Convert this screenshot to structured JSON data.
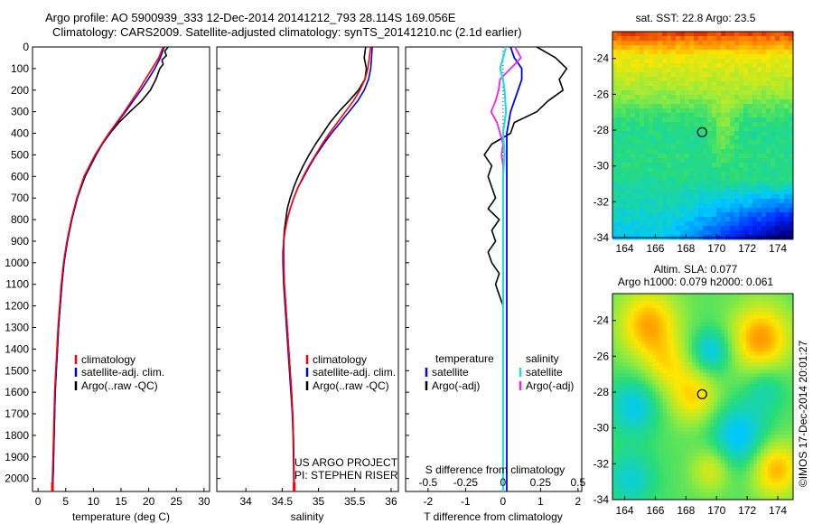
{
  "header": {
    "line1": "Argo profile: AO 5900939_333 12-Dec-2014 20141212_793 28.114S 169.056E",
    "line2": "Climatology: CARS2009. Satellite-adjusted climatology: synTS_20141210.nc (2.1d earlier)"
  },
  "colors": {
    "climatology": "#ff0000",
    "satellite": "#0000dd",
    "argo": "#000000",
    "temp_sat": "#0000ff",
    "sal_sat": "#22dddd",
    "sal_argo": "#ee22ee"
  },
  "legend": {
    "climatology": "climatology",
    "satellite": "satellite-adj. clim.",
    "argo": "Argo(..raw -QC)",
    "diff_temperature": "temperature",
    "diff_salinity": "salinity",
    "diff_satellite": "satellite",
    "diff_argo": "Argo(-adj)"
  },
  "credits": {
    "project": "US ARGO PROJECT",
    "pi": "PI: STEPHEN RISER"
  },
  "timestamp": "©IMOS 17-Dec-2014 20:01:27",
  "depth_ticks": [
    0,
    100,
    200,
    300,
    400,
    500,
    600,
    700,
    800,
    900,
    1000,
    1100,
    1200,
    1300,
    1400,
    1500,
    1600,
    1700,
    1800,
    1900,
    2000
  ],
  "chart_data": [
    {
      "type": "line",
      "xlabel": "temperature (deg C)",
      "xlim": [
        -1,
        31
      ],
      "ylim": [
        2060,
        0
      ],
      "xticks": [
        0,
        5,
        10,
        15,
        20,
        25,
        30
      ],
      "series": [
        {
          "name": "climatology",
          "depth": [
            0,
            50,
            100,
            150,
            200,
            250,
            300,
            350,
            400,
            450,
            500,
            600,
            700,
            800,
            900,
            1000,
            1100,
            1200,
            1300,
            1400,
            1500,
            1600,
            1700,
            1800,
            1900,
            2000,
            2060
          ],
          "values": [
            22.6,
            21.8,
            20.6,
            19.4,
            18.2,
            16.9,
            15.6,
            14.2,
            12.8,
            11.5,
            10.3,
            8.3,
            7.0,
            6.0,
            5.2,
            4.6,
            4.2,
            3.9,
            3.6,
            3.4,
            3.2,
            3.0,
            2.9,
            2.8,
            2.7,
            2.6,
            2.6
          ]
        },
        {
          "name": "satellite-adj. clim.",
          "depth": [
            0,
            50,
            100,
            150,
            200,
            250,
            300,
            350,
            400,
            450,
            500,
            600,
            700,
            800,
            900,
            1000,
            1100,
            1200,
            1300,
            1400,
            1500,
            1600,
            1700,
            1800,
            1900,
            2000,
            2060
          ],
          "values": [
            22.8,
            22.1,
            21.1,
            19.9,
            18.6,
            17.2,
            15.8,
            14.3,
            12.9,
            11.6,
            10.4,
            8.4,
            7.1,
            6.1,
            5.3,
            4.7,
            4.3,
            4.0,
            3.7,
            3.5,
            3.3,
            3.1,
            3.0,
            2.9,
            2.8,
            2.7,
            2.7
          ]
        },
        {
          "name": "Argo(..raw -QC)",
          "depth": [
            0,
            20,
            40,
            60,
            80,
            100,
            150,
            200,
            250,
            300,
            350,
            400,
            450,
            500,
            600,
            700,
            800,
            900,
            1000,
            1100,
            1200,
            1300,
            1400,
            1500,
            1600,
            1700,
            1800,
            1900,
            2000,
            2060
          ],
          "values": [
            23.5,
            22.9,
            23.2,
            22.4,
            22.6,
            22.0,
            21.3,
            20.3,
            18.7,
            16.6,
            14.6,
            13.0,
            11.6,
            10.5,
            8.5,
            7.1,
            6.1,
            5.3,
            4.7,
            4.3,
            4.0,
            3.7,
            3.5,
            3.3,
            3.1,
            3.0,
            2.9,
            2.8,
            2.7,
            2.7
          ]
        }
      ]
    },
    {
      "type": "line",
      "xlabel": "salinity",
      "xlim": [
        33.6,
        36.1
      ],
      "ylim": [
        2060,
        0
      ],
      "xticks": [
        34,
        34.5,
        35,
        35.5,
        36
      ],
      "series": [
        {
          "name": "climatology",
          "depth": [
            0,
            50,
            100,
            150,
            200,
            250,
            300,
            350,
            400,
            450,
            500,
            550,
            600,
            650,
            700,
            750,
            800,
            850,
            900,
            950,
            1000,
            1100,
            1200,
            1300,
            1400,
            1500,
            1600,
            1700,
            1800,
            1900,
            2000,
            2060
          ],
          "values": [
            35.72,
            35.7,
            35.68,
            35.64,
            35.57,
            35.48,
            35.37,
            35.26,
            35.15,
            35.05,
            34.96,
            34.87,
            34.79,
            34.72,
            34.66,
            34.61,
            34.57,
            34.54,
            34.52,
            34.52,
            34.52,
            34.53,
            34.55,
            34.57,
            34.59,
            34.61,
            34.63,
            34.645,
            34.655,
            34.66,
            34.665,
            34.665
          ]
        },
        {
          "name": "satellite-adj. clim.",
          "depth": [
            0,
            50,
            100,
            150,
            200,
            250,
            300,
            350,
            400,
            450,
            500,
            550,
            600,
            650,
            700,
            750,
            800,
            850,
            900,
            950,
            1000,
            1100,
            1200,
            1300,
            1400,
            1500,
            1600,
            1700,
            1800,
            1900,
            2000,
            2060
          ],
          "values": [
            35.74,
            35.73,
            35.72,
            35.69,
            35.63,
            35.54,
            35.42,
            35.3,
            35.18,
            35.07,
            34.97,
            34.88,
            34.8,
            34.72,
            34.66,
            34.61,
            34.57,
            34.54,
            34.52,
            34.51,
            34.51,
            34.52,
            34.54,
            34.56,
            34.58,
            34.6,
            34.62,
            34.64,
            34.65,
            34.655,
            34.66,
            34.66
          ]
        },
        {
          "name": "Argo(..raw -QC)",
          "depth": [
            0,
            50,
            100,
            150,
            200,
            250,
            300,
            350,
            400,
            450,
            500,
            550,
            600,
            650,
            700,
            750,
            800,
            850,
            900,
            950,
            1000,
            1100,
            1200,
            1300,
            1400,
            1500,
            1600,
            1700,
            1800,
            1900,
            2000,
            2060
          ],
          "values": [
            35.65,
            35.63,
            35.66,
            35.64,
            35.55,
            35.42,
            35.28,
            35.16,
            35.06,
            34.96,
            34.87,
            34.79,
            34.72,
            34.66,
            34.61,
            34.57,
            34.55,
            34.53,
            34.52,
            34.52,
            34.52,
            34.53,
            34.55,
            34.57,
            34.59,
            34.61,
            34.63,
            34.645,
            34.655,
            34.66,
            34.665,
            34.665
          ]
        }
      ]
    },
    {
      "type": "line",
      "xlabel": "T difference from climatology",
      "xlabel_top": "S difference from climatology",
      "xlim": [
        -2.6,
        2.1
      ],
      "ylim": [
        2060,
        0
      ],
      "xticks": [
        -2,
        -1,
        0,
        1,
        2
      ],
      "xticks_top": [
        "-0.5",
        "-0.25",
        "0",
        "0.25",
        "0.5"
      ],
      "series": [
        {
          "name": "temperature satellite",
          "depth": [
            0,
            50,
            100,
            150,
            200,
            300,
            400,
            500,
            600,
            700,
            800,
            1000,
            1200,
            1500,
            2060
          ],
          "values": [
            0.2,
            0.3,
            0.5,
            0.5,
            0.4,
            0.2,
            0.1,
            0.1,
            0.1,
            0.1,
            0.1,
            0.1,
            0.1,
            0.1,
            0.1
          ]
        },
        {
          "name": "temperature Argo(-adj)",
          "depth": [
            0,
            50,
            100,
            150,
            200,
            250,
            300,
            350,
            400,
            450,
            500,
            550,
            600,
            650,
            700,
            750,
            800,
            850,
            900,
            950,
            1000,
            1050,
            1100,
            1150,
            1200,
            1250,
            1300,
            1500,
            2060
          ],
          "values": [
            0.9,
            1.4,
            1.7,
            1.5,
            1.6,
            1.2,
            0.9,
            0.3,
            0.2,
            -0.3,
            -0.5,
            -0.3,
            -0.4,
            -0.3,
            -0.2,
            -0.4,
            -0.1,
            -0.3,
            -0.2,
            -0.4,
            -0.3,
            -0.1,
            -0.2,
            -0.1,
            0,
            0,
            0,
            0,
            0
          ]
        },
        {
          "name": "salinity satellite",
          "depth": [
            0,
            50,
            100,
            150,
            200,
            300,
            400,
            500,
            600,
            800,
            1000,
            1500,
            2060
          ],
          "values": [
            0.02,
            0.0,
            -0.02,
            0.0,
            0.01,
            0.02,
            0.0,
            0.01,
            0.0,
            0.0,
            0.0,
            0.0,
            0.0
          ]
        },
        {
          "name": "salinity Argo(-adj)",
          "depth": [
            0,
            50,
            100,
            150,
            200,
            250,
            300,
            350,
            400,
            450,
            500,
            550,
            600,
            650,
            700,
            800,
            1000,
            1500,
            2060
          ],
          "values": [
            0.08,
            0.12,
            0.05,
            -0.02,
            -0.03,
            -0.05,
            -0.08,
            -0.04,
            -0.02,
            0.0,
            -0.01,
            0.0,
            0.0,
            0.0,
            0.0,
            0.0,
            0.0,
            0.0,
            0.0
          ]
        }
      ]
    },
    {
      "type": "heatmap",
      "title": "sat. SST: 22.8 Argo: 23.5",
      "xlim": [
        163.2,
        175.0
      ],
      "ylim": [
        -34,
        -22.5
      ],
      "xticks": [
        164,
        166,
        168,
        170,
        172,
        174
      ],
      "yticks": [
        -24,
        -26,
        -28,
        -30,
        -32,
        -34
      ],
      "marker": [
        169.056,
        -28.114
      ]
    },
    {
      "type": "heatmap",
      "title": "Altim. SLA: 0.077",
      "subtitle": "Argo h1000: 0.079 h2000: 0.061",
      "xlim": [
        163.2,
        175.0
      ],
      "ylim": [
        -34,
        -22.5
      ],
      "xticks": [
        164,
        166,
        168,
        170,
        172,
        174
      ],
      "yticks": [
        -24,
        -26,
        -28,
        -30,
        -32,
        -34
      ],
      "marker": [
        169.056,
        -28.114
      ]
    }
  ]
}
